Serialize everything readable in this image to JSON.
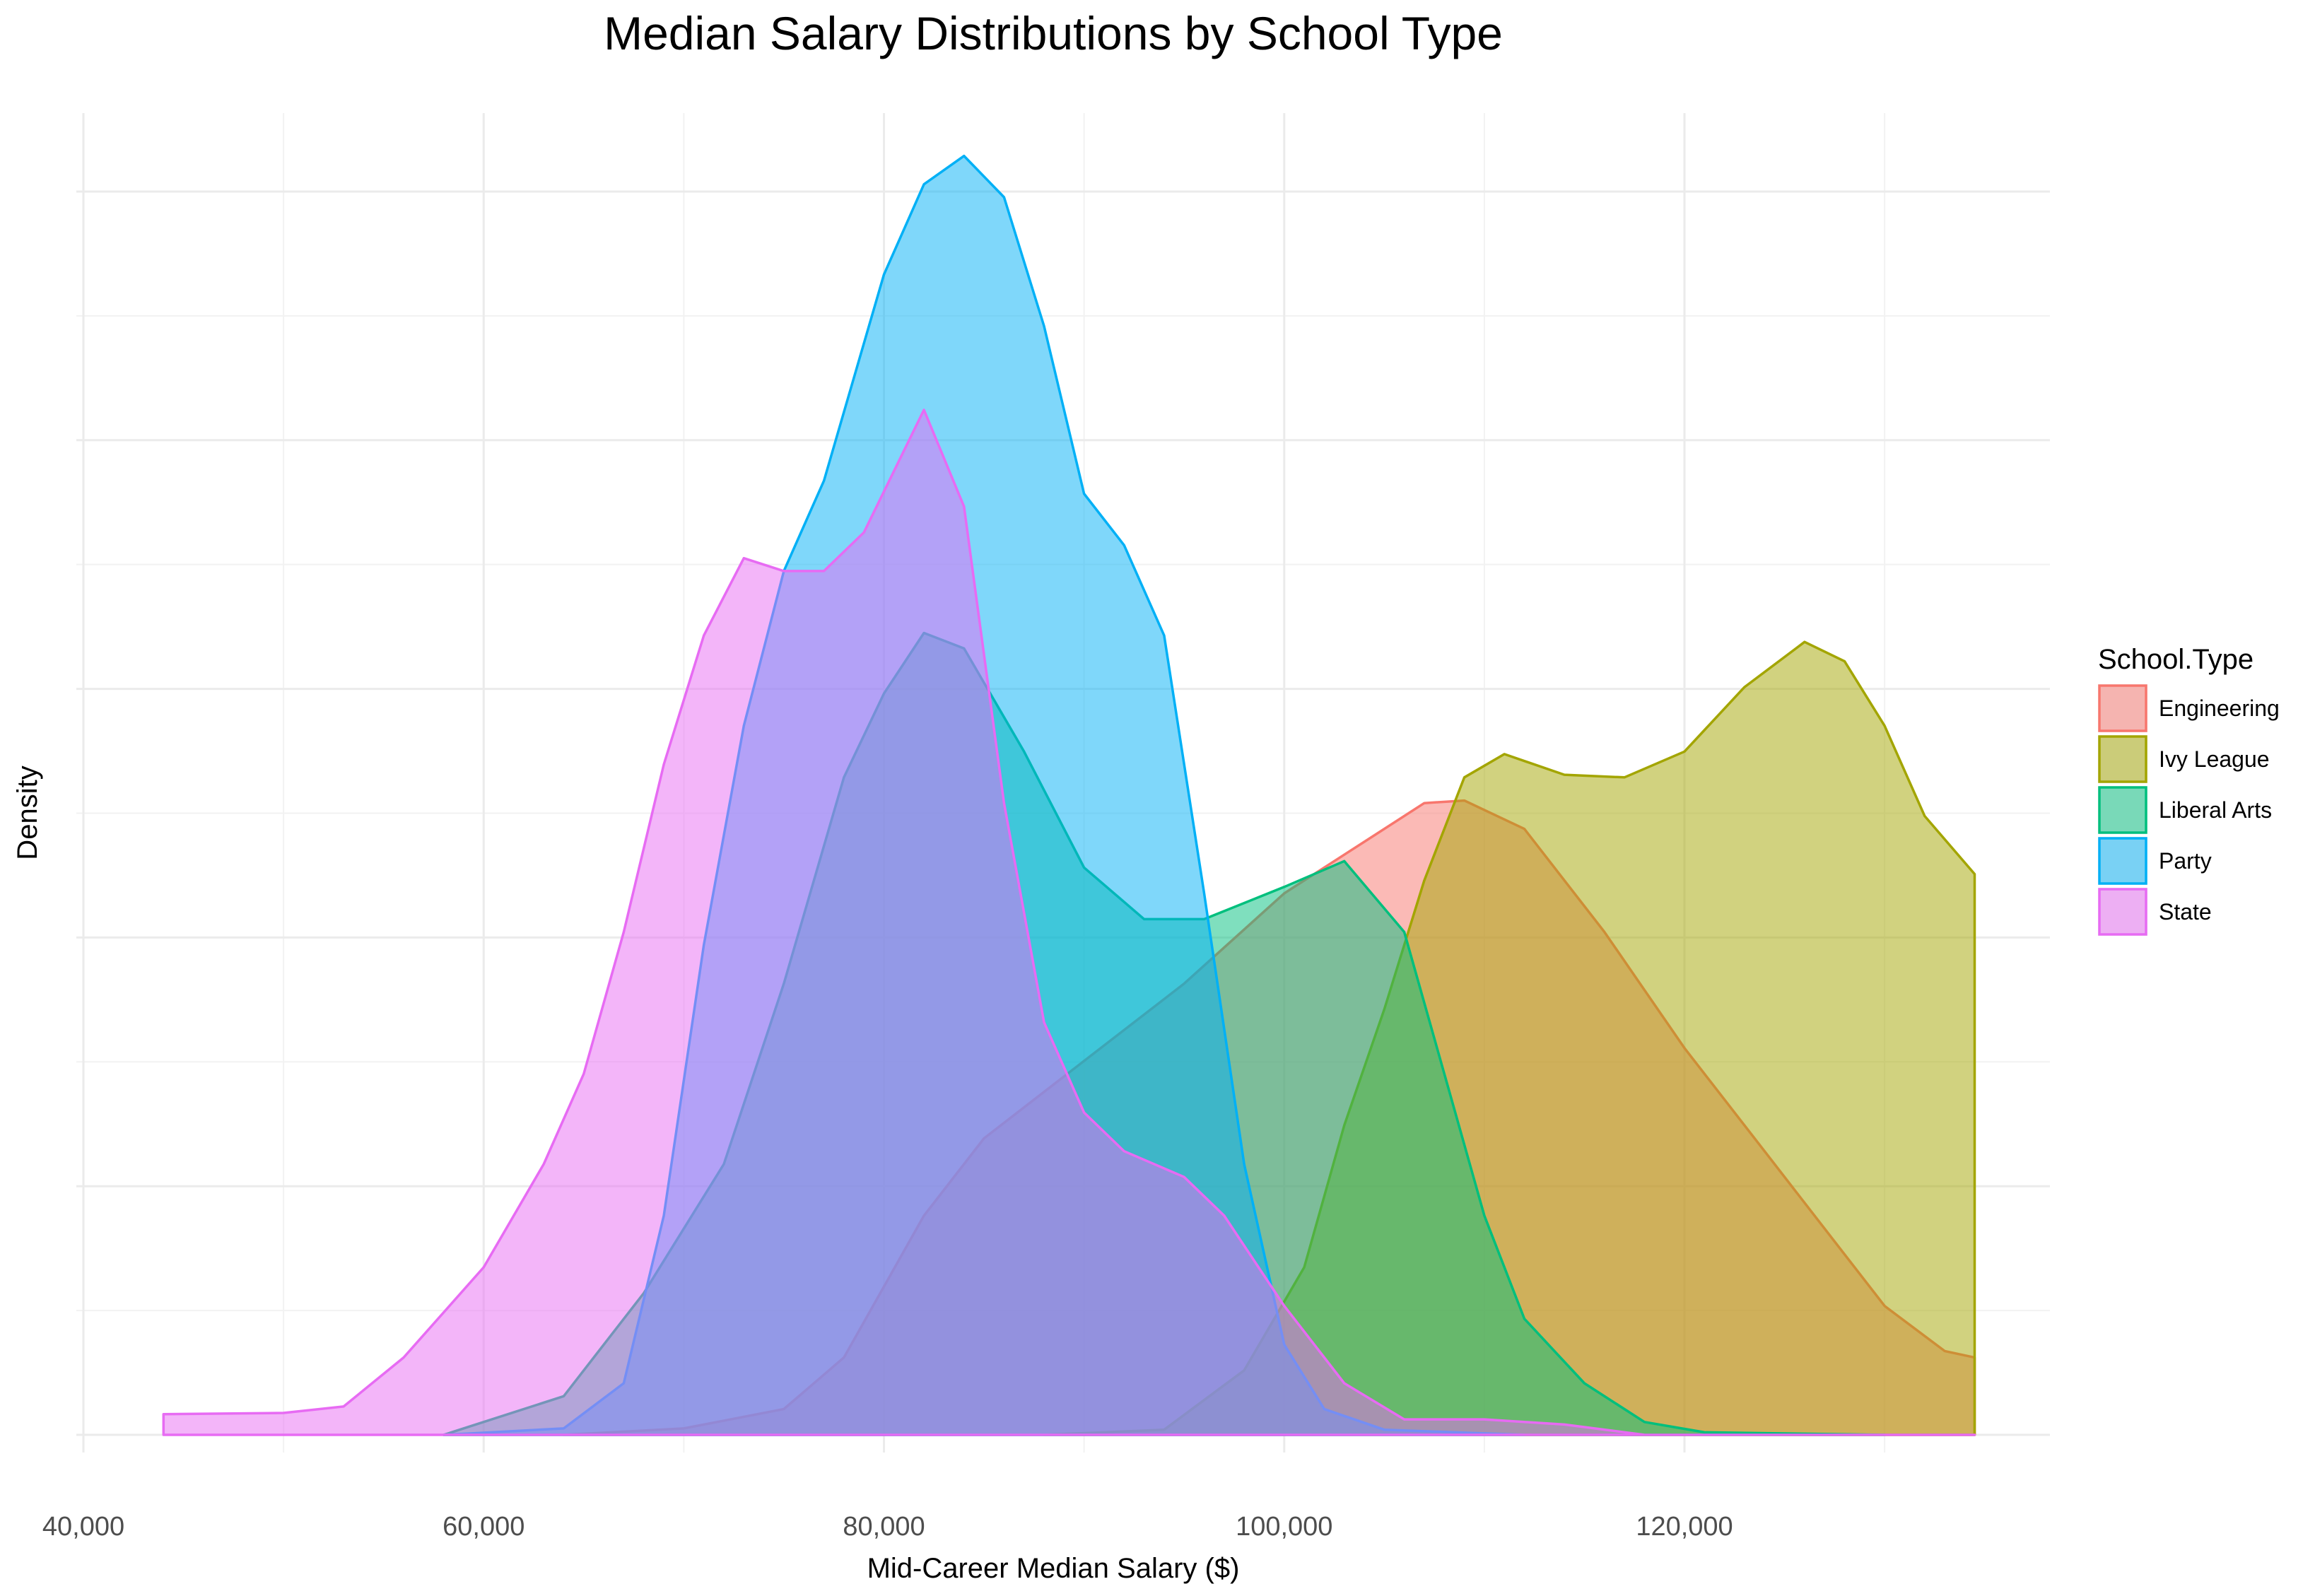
{
  "chart_data": {
    "type": "area",
    "subtype": "density",
    "title": "Median Salary Distributions by School Type",
    "xlabel": "Mid-Career Median Salary ($)",
    "ylabel": "Density",
    "xlim": [
      40000,
      138000
    ],
    "ylim": [
      0,
      1
    ],
    "x_ticks": [
      40000,
      60000,
      80000,
      100000,
      120000
    ],
    "x_tick_labels": [
      "40,000",
      "60,000",
      "80,000",
      "100,000",
      "120,000"
    ],
    "y_ticks_shown": false,
    "grid": true,
    "theme": "minimal",
    "fill_opacity": 0.5,
    "legend": {
      "title": "School.Type",
      "position": "right"
    },
    "series": [
      {
        "name": "Engineering",
        "color": "#F8766D",
        "points": [
          [
            64000,
            0.0
          ],
          [
            70000,
            0.005
          ],
          [
            75000,
            0.02
          ],
          [
            78000,
            0.06
          ],
          [
            82000,
            0.17
          ],
          [
            85000,
            0.23
          ],
          [
            90000,
            0.29
          ],
          [
            95000,
            0.35
          ],
          [
            100000,
            0.42
          ],
          [
            104000,
            0.46
          ],
          [
            107000,
            0.49
          ],
          [
            109000,
            0.492
          ],
          [
            112000,
            0.47
          ],
          [
            116000,
            0.39
          ],
          [
            120000,
            0.3
          ],
          [
            124000,
            0.22
          ],
          [
            127000,
            0.16
          ],
          [
            130000,
            0.1
          ],
          [
            133000,
            0.065
          ],
          [
            134500,
            0.06
          ]
        ]
      },
      {
        "name": "Ivy League",
        "color": "#A3A500",
        "points": [
          [
            88000,
            0.0
          ],
          [
            94000,
            0.004
          ],
          [
            98000,
            0.05
          ],
          [
            101000,
            0.13
          ],
          [
            103000,
            0.24
          ],
          [
            105000,
            0.33
          ],
          [
            107000,
            0.43
          ],
          [
            109000,
            0.51
          ],
          [
            111000,
            0.528
          ],
          [
            114000,
            0.512
          ],
          [
            117000,
            0.51
          ],
          [
            120000,
            0.53
          ],
          [
            123000,
            0.58
          ],
          [
            126000,
            0.615
          ],
          [
            128000,
            0.6
          ],
          [
            130000,
            0.55
          ],
          [
            132000,
            0.48
          ],
          [
            134500,
            0.435
          ]
        ]
      },
      {
        "name": "Liberal Arts",
        "color": "#00BF7D",
        "points": [
          [
            58000,
            0.0
          ],
          [
            64000,
            0.03
          ],
          [
            68000,
            0.11
          ],
          [
            72000,
            0.21
          ],
          [
            75000,
            0.35
          ],
          [
            78000,
            0.51
          ],
          [
            80000,
            0.575
          ],
          [
            82000,
            0.622
          ],
          [
            84000,
            0.61
          ],
          [
            87000,
            0.53
          ],
          [
            90000,
            0.44
          ],
          [
            93000,
            0.4
          ],
          [
            96000,
            0.4
          ],
          [
            100000,
            0.425
          ],
          [
            103000,
            0.445
          ],
          [
            106000,
            0.39
          ],
          [
            108000,
            0.28
          ],
          [
            110000,
            0.17
          ],
          [
            112000,
            0.09
          ],
          [
            115000,
            0.04
          ],
          [
            118000,
            0.01
          ],
          [
            121000,
            0.002
          ],
          [
            130000,
            0.0
          ]
        ]
      },
      {
        "name": "Party",
        "color": "#00B0F6",
        "points": [
          [
            58000,
            0.0
          ],
          [
            64000,
            0.005
          ],
          [
            67000,
            0.04
          ],
          [
            69000,
            0.17
          ],
          [
            71000,
            0.38
          ],
          [
            73000,
            0.55
          ],
          [
            75000,
            0.67
          ],
          [
            77000,
            0.74
          ],
          [
            80000,
            0.9
          ],
          [
            82000,
            0.97
          ],
          [
            84000,
            0.992
          ],
          [
            86000,
            0.96
          ],
          [
            88000,
            0.86
          ],
          [
            90000,
            0.73
          ],
          [
            92000,
            0.69
          ],
          [
            94000,
            0.62
          ],
          [
            96000,
            0.42
          ],
          [
            98000,
            0.21
          ],
          [
            100000,
            0.07
          ],
          [
            102000,
            0.02
          ],
          [
            105000,
            0.004
          ],
          [
            112000,
            0.0
          ]
        ]
      },
      {
        "name": "State",
        "color": "#E76BF3",
        "points": [
          [
            44000,
            0.016
          ],
          [
            50000,
            0.017
          ],
          [
            53000,
            0.022
          ],
          [
            56000,
            0.06
          ],
          [
            60000,
            0.13
          ],
          [
            63000,
            0.21
          ],
          [
            65000,
            0.28
          ],
          [
            67000,
            0.39
          ],
          [
            69000,
            0.52
          ],
          [
            71000,
            0.62
          ],
          [
            73000,
            0.68
          ],
          [
            75000,
            0.67
          ],
          [
            77000,
            0.67
          ],
          [
            79000,
            0.7
          ],
          [
            82000,
            0.795
          ],
          [
            84000,
            0.72
          ],
          [
            86000,
            0.49
          ],
          [
            88000,
            0.32
          ],
          [
            90000,
            0.25
          ],
          [
            92000,
            0.22
          ],
          [
            95000,
            0.2
          ],
          [
            97000,
            0.17
          ],
          [
            100000,
            0.1
          ],
          [
            103000,
            0.04
          ],
          [
            106000,
            0.012
          ],
          [
            110000,
            0.012
          ],
          [
            114000,
            0.008
          ],
          [
            118000,
            0.0
          ],
          [
            134500,
            0.0
          ]
        ]
      }
    ]
  }
}
